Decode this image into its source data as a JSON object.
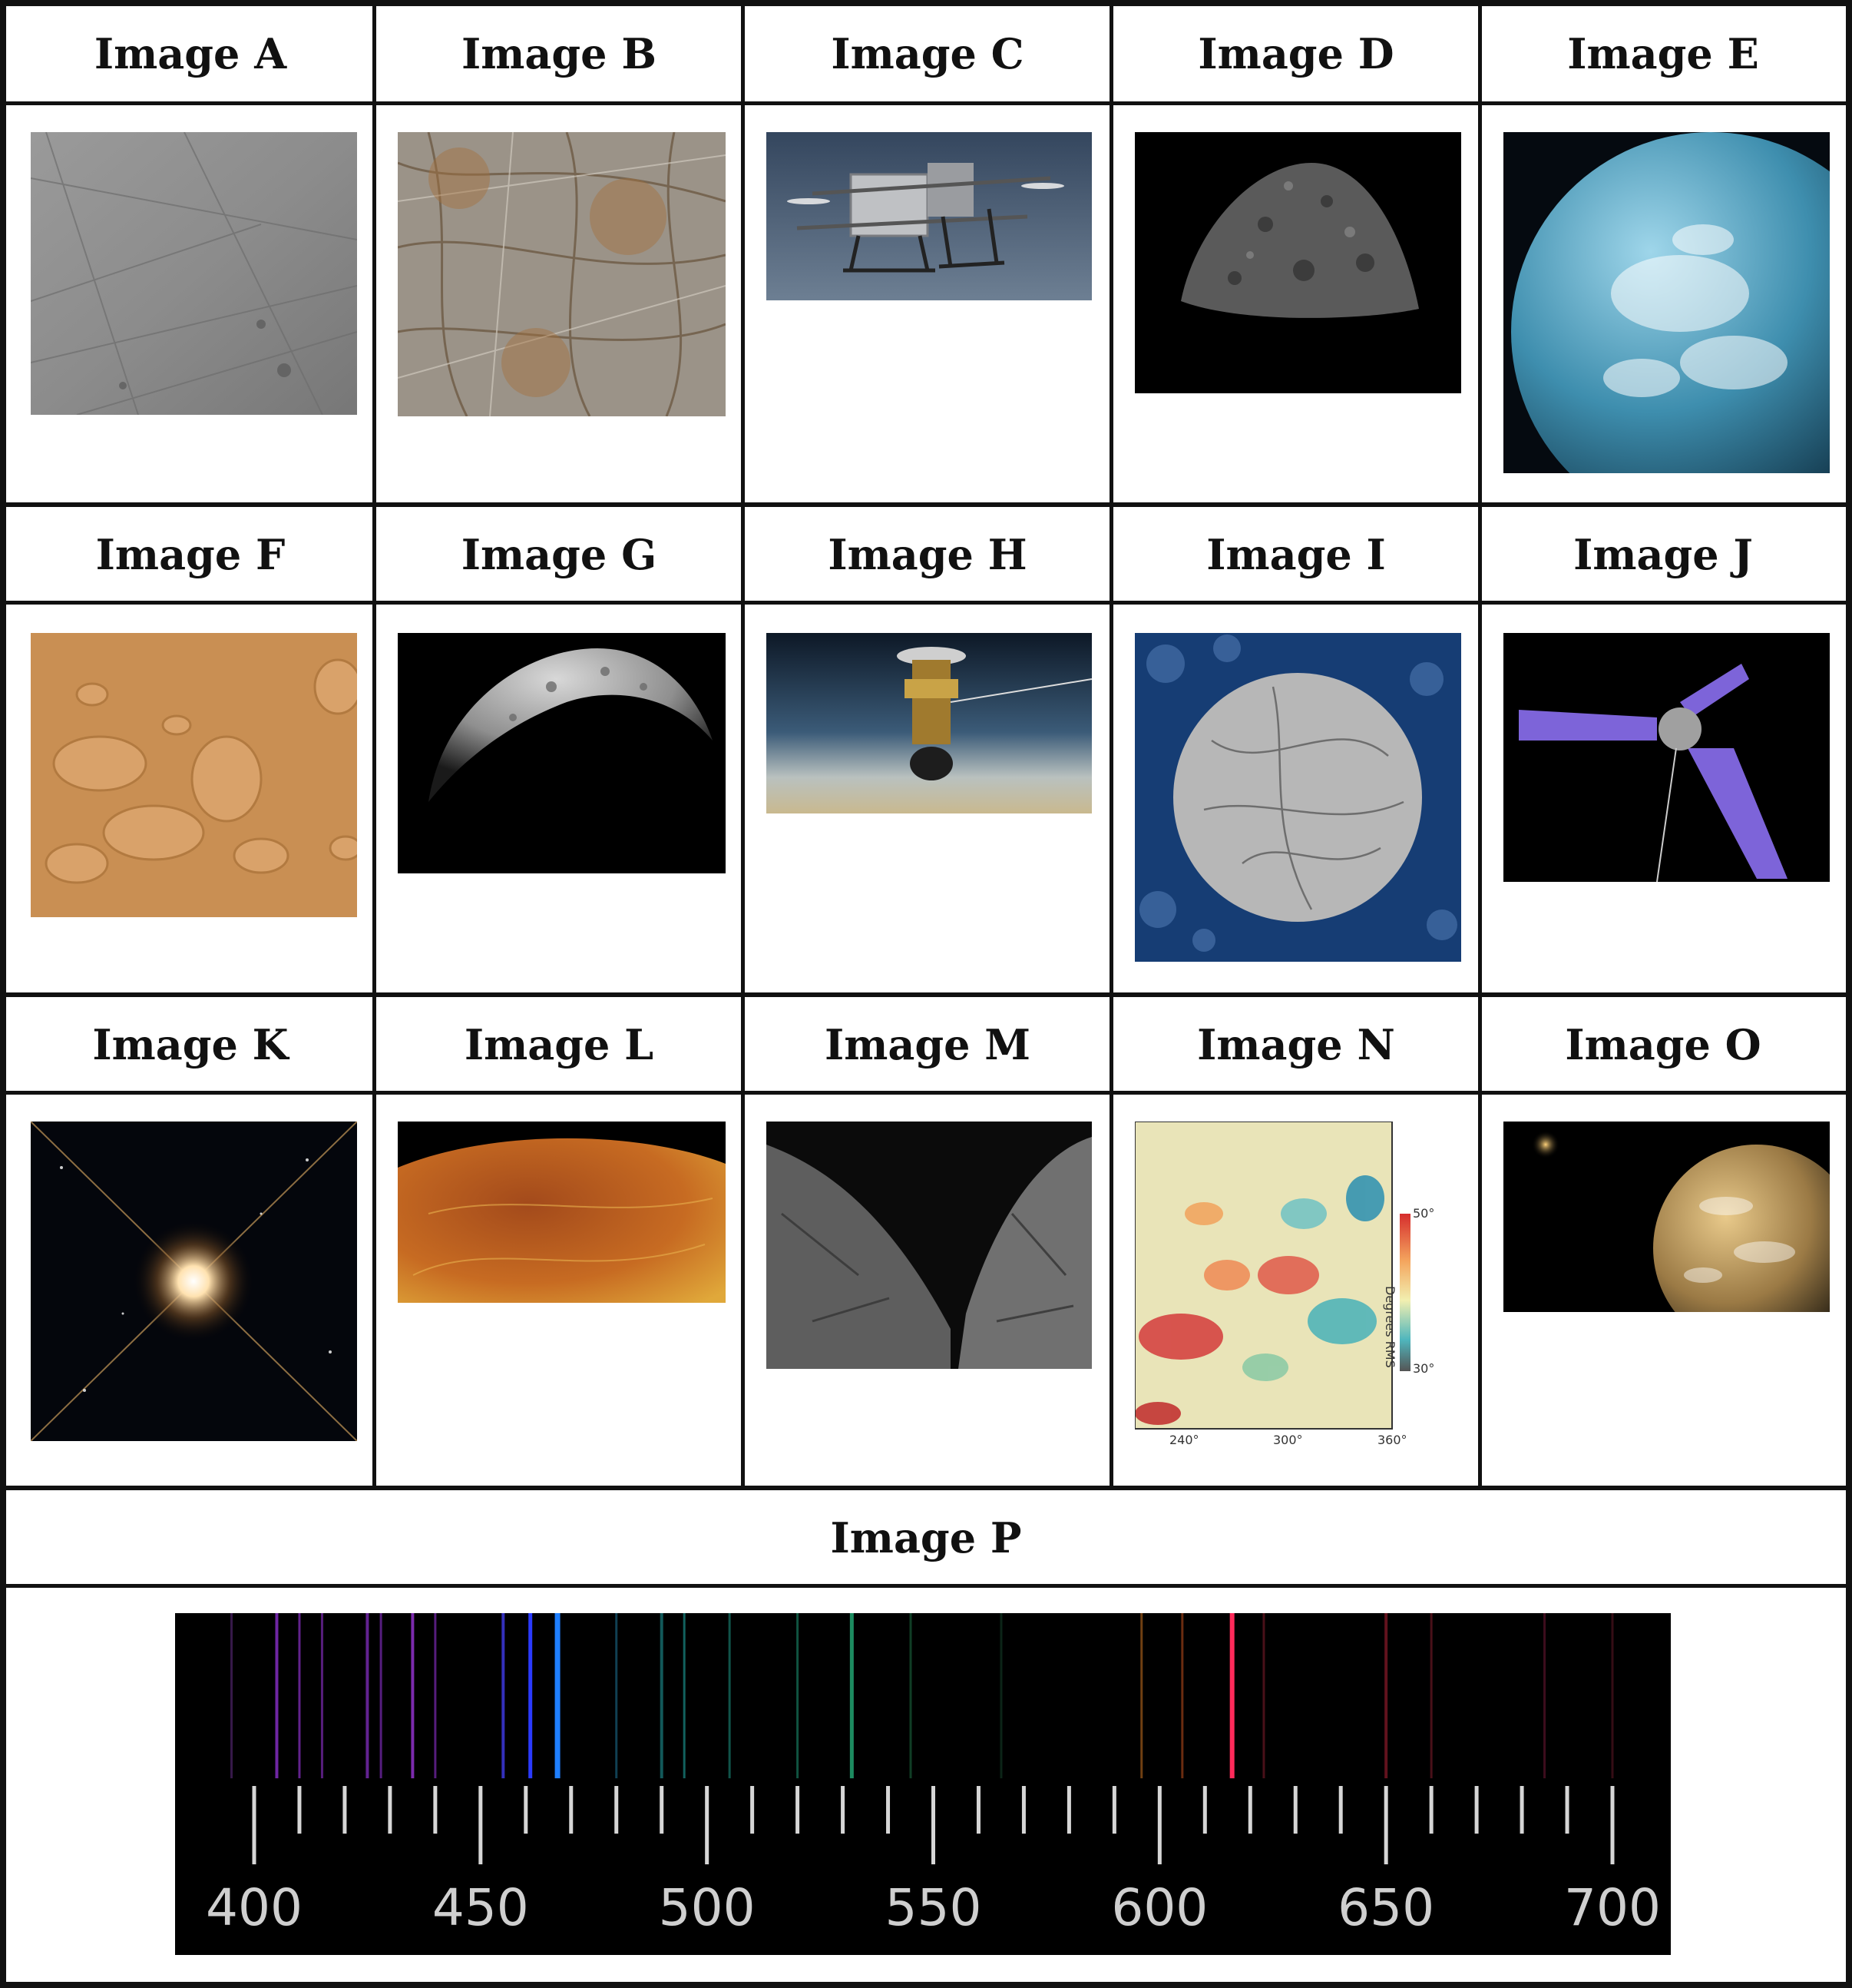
{
  "panels": [
    {
      "id": "A",
      "label": "Image A"
    },
    {
      "id": "B",
      "label": "Image B"
    },
    {
      "id": "C",
      "label": "Image C"
    },
    {
      "id": "D",
      "label": "Image D"
    },
    {
      "id": "E",
      "label": "Image E"
    },
    {
      "id": "F",
      "label": "Image F"
    },
    {
      "id": "G",
      "label": "Image G"
    },
    {
      "id": "H",
      "label": "Image H"
    },
    {
      "id": "I",
      "label": "Image I"
    },
    {
      "id": "J",
      "label": "Image J"
    },
    {
      "id": "K",
      "label": "Image K"
    },
    {
      "id": "L",
      "label": "Image L"
    },
    {
      "id": "M",
      "label": "Image M"
    },
    {
      "id": "N",
      "label": "Image N"
    },
    {
      "id": "O",
      "label": "Image O"
    },
    {
      "id": "P",
      "label": "Image P"
    }
  ],
  "image_n": {
    "colorbar_max": "50°",
    "colorbar_min": "30°",
    "colorbar_label": "Degrees RMS",
    "x_ticks": [
      "240°",
      "300°",
      "360°"
    ]
  },
  "image_p": {
    "scale_labels": [
      "400",
      "450",
      "500",
      "550",
      "600",
      "650",
      "700"
    ]
  }
}
